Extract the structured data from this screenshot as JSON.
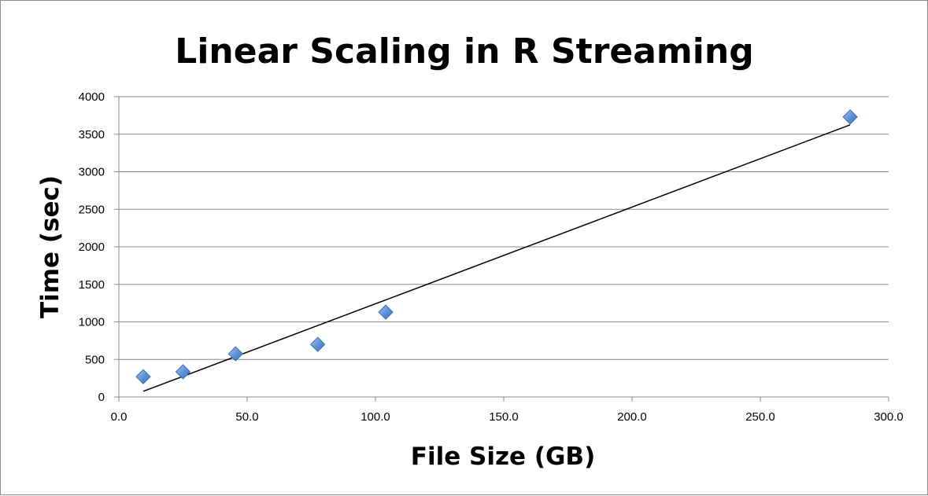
{
  "chart_data": {
    "type": "scatter",
    "title": "Linear Scaling in R Streaming",
    "xlabel": "File Size (GB)",
    "ylabel": "Time (sec)",
    "xlim": [
      0,
      300
    ],
    "ylim": [
      0,
      4000
    ],
    "xticks": [
      "0.0",
      "50.0",
      "100.0",
      "150.0",
      "200.0",
      "250.0",
      "300.0"
    ],
    "yticks": [
      "0",
      "500",
      "1000",
      "1500",
      "2000",
      "2500",
      "3000",
      "3500",
      "4000"
    ],
    "grid": "horizontal",
    "legend": "none",
    "series": [
      {
        "marker": "diamond",
        "color": "#5b8fd6",
        "points": [
          {
            "x": 9.5,
            "y": 270
          },
          {
            "x": 25.0,
            "y": 335
          },
          {
            "x": 45.5,
            "y": 575
          },
          {
            "x": 77.5,
            "y": 700
          },
          {
            "x": 104.0,
            "y": 1130
          },
          {
            "x": 285.0,
            "y": 3730
          }
        ]
      }
    ],
    "trendline": {
      "type": "linear",
      "color": "#000000",
      "from": {
        "x": 9.5,
        "y": 75
      },
      "to": {
        "x": 285.0,
        "y": 3625
      }
    }
  }
}
